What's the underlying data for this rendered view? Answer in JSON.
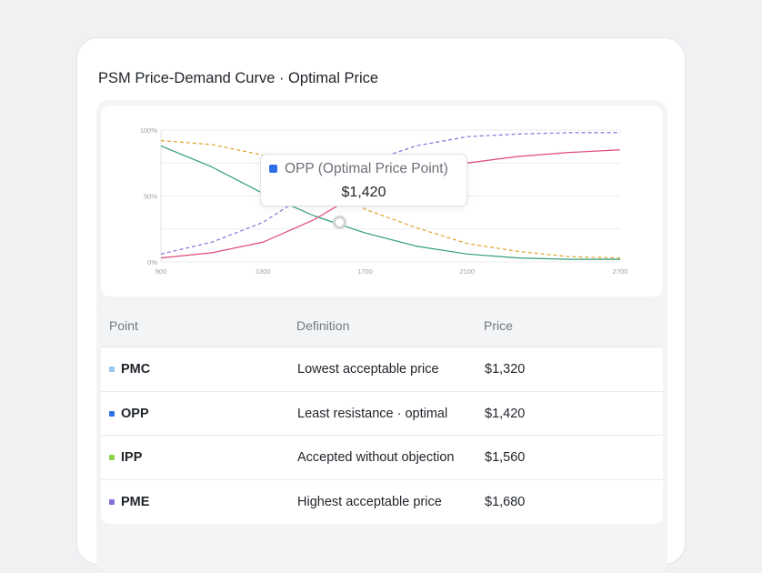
{
  "card": {
    "title": "PSM Price-Demand Curve · Optimal Price"
  },
  "chart_data": {
    "type": "line",
    "x": [
      900,
      1100,
      1300,
      1500,
      1700,
      1900,
      2100,
      2300,
      2500,
      2700
    ],
    "xticks": [
      "900",
      "1300",
      "1700",
      "2100",
      "2700"
    ],
    "xtick_values": [
      900,
      1300,
      1700,
      2100,
      2700
    ],
    "yticks": [
      "0%",
      "50%",
      "100%"
    ],
    "ytick_values": [
      0,
      50,
      100
    ],
    "xlim": [
      900,
      2700
    ],
    "ylim": [
      0,
      100
    ],
    "grid": true,
    "series": [
      {
        "color": "#e0a126",
        "dash": true,
        "values": [
          92,
          89,
          81,
          64,
          40,
          26,
          14,
          8,
          4,
          3
        ]
      },
      {
        "color": "#2e9d78",
        "dash": false,
        "values": [
          88,
          72,
          52,
          35,
          22,
          12,
          6,
          3,
          2,
          2
        ]
      },
      {
        "color": "#8a6fd6",
        "dash": true,
        "values": [
          6,
          15,
          30,
          55,
          75,
          88,
          95,
          97,
          98,
          98
        ]
      },
      {
        "color": "#e0487a",
        "dash": false,
        "values": [
          3,
          7,
          15,
          32,
          55,
          66,
          75,
          80,
          83,
          85
        ]
      }
    ],
    "highlight": {
      "x": 1600,
      "y": 30,
      "color": "#d0d2d6"
    },
    "tooltip": {
      "label": "OPP (Optimal Price Point)",
      "value": "$1,420",
      "swatch_color": "#2f6fe6"
    }
  },
  "table": {
    "headers": [
      "Point",
      "Definition",
      "Price"
    ],
    "rows": [
      {
        "point": "PMC",
        "definition": "Lowest acceptable price",
        "price": "$1,320",
        "color": "#9ac7f0"
      },
      {
        "point": "OPP",
        "definition": "Least resistance · optimal",
        "price": "$1,420",
        "color": "#2f6fe6"
      },
      {
        "point": "IPP",
        "definition": "Accepted without objection",
        "price": "$1,560",
        "color": "#8fd14a"
      },
      {
        "point": "PME",
        "definition": "Highest acceptable price",
        "price": "$1,680",
        "color": "#8a6fd6"
      }
    ]
  }
}
